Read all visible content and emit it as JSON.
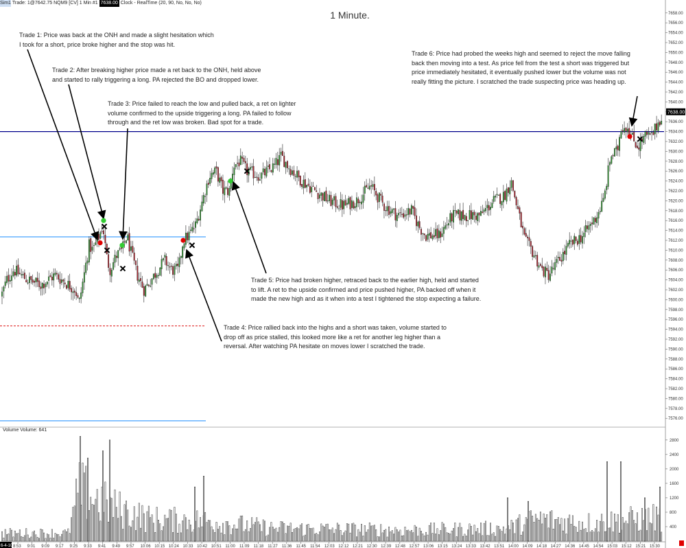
{
  "header": {
    "sim_tag": "Sim1",
    "trade_text": "Trade: 1@7642.75",
    "instrument": "NQM9 [CV]  1 Min  #1",
    "price_badge": "7638.00",
    "clock": "Clock - RealTime   (20, 90, No, No, No)"
  },
  "title": "1 Minute.",
  "annotations": [
    "Trade 1:  Price was back at the ONH and made a slight hesitation which\nI took for a short, price broke higher and the stop was hit.",
    "Trade 2:  After breaking higher price made a ret back to the ONH, held above\nand started to rally triggering a long.  PA rejected the BO and dropped lower.",
    "Trade 3:  Price failed to reach the low and pulled back, a ret on lighter\nvolume confirmed to the upside triggering a long.  PA failed to follow\nthrough and the ret low was broken.  Bad spot for a trade.",
    "Trade 4:  Price rallied back into the highs and a short was taken, volume started to\ndrop off as price stalled, this looked more like a ret for another leg higher than a\nreversal.  After watching PA hesitate on moves lower I scratched the trade.",
    "Trade 5:  Price had broken higher, retraced back to the earlier high, held and started\nto lift.  A ret to the upside confirmed and price pushed higher, PA backed off when it\nmade the new high and as it when into a test I tightened the stop expecting a failure.",
    "Trade 6:  Price had probed the weeks high and seemed to reject the move falling\nback then moving into a test.  As price fell from the test a short was triggered but\nprice immediately hesitated, it eventually pushed lower but the volume was not\nreally fitting the picture.  I scratched the trade suspecting price was heading up."
  ],
  "volume_label": "Volume  Volume: 641",
  "chart_data": {
    "type": "candlestick",
    "title": "1 Minute.",
    "x_start_label": "6-4-10",
    "x_ticks": [
      "8:53",
      "9:01",
      "9:09",
      "9:17",
      "9:25",
      "9:33",
      "9:41",
      "9:49",
      "9:57",
      "10:06",
      "10:15",
      "10:24",
      "10:33",
      "10:42",
      "10:51",
      "11:00",
      "11:09",
      "11:18",
      "11:27",
      "11:36",
      "11:45",
      "11:54",
      "12:03",
      "12:12",
      "12:21",
      "12:30",
      "12:39",
      "12:48",
      "12:57",
      "13:06",
      "13:15",
      "13:24",
      "13:33",
      "13:42",
      "13:51",
      "14:00",
      "14:09",
      "14:18",
      "14:27",
      "14:36",
      "14:45",
      "14:54",
      "15:03",
      "15:12",
      "15:21",
      "15:30"
    ],
    "y_ticks": [
      7576,
      7578,
      7580,
      7582,
      7584,
      7586,
      7588,
      7590,
      7592,
      7594,
      7596,
      7598,
      7600,
      7602,
      7604,
      7606,
      7608,
      7610,
      7612,
      7614,
      7616,
      7618,
      7620,
      7622,
      7624,
      7626,
      7628,
      7630,
      7632,
      7634,
      7636,
      7638,
      7640,
      7642,
      7644,
      7646,
      7648,
      7650,
      7652,
      7654,
      7656,
      7658
    ],
    "ylim": [
      7574.5,
      7659.5
    ],
    "last_price": "7638.00",
    "price_path": [
      [
        0,
        7600
      ],
      [
        10,
        7604
      ],
      [
        20,
        7606
      ],
      [
        40,
        7604
      ],
      [
        60,
        7603
      ],
      [
        80,
        7605
      ],
      [
        100,
        7603
      ],
      [
        110,
        7602
      ],
      [
        115,
        7599
      ],
      [
        120,
        7603
      ],
      [
        125,
        7607
      ],
      [
        130,
        7611
      ],
      [
        135,
        7610
      ],
      [
        145,
        7613
      ],
      [
        150,
        7615
      ],
      [
        155,
        7609
      ],
      [
        160,
        7606
      ],
      [
        170,
        7609
      ],
      [
        178,
        7610
      ],
      [
        185,
        7613
      ],
      [
        190,
        7610
      ],
      [
        200,
        7605
      ],
      [
        210,
        7602
      ],
      [
        220,
        7604
      ],
      [
        230,
        7606
      ],
      [
        240,
        7608
      ],
      [
        250,
        7606
      ],
      [
        260,
        7606
      ],
      [
        267,
        7612
      ],
      [
        275,
        7613
      ],
      [
        285,
        7615
      ],
      [
        295,
        7620
      ],
      [
        305,
        7625
      ],
      [
        315,
        7626
      ],
      [
        325,
        7622
      ],
      [
        335,
        7622
      ],
      [
        340,
        7627
      ],
      [
        350,
        7628
      ],
      [
        360,
        7626
      ],
      [
        380,
        7625
      ],
      [
        400,
        7627
      ],
      [
        410,
        7629
      ],
      [
        420,
        7627
      ],
      [
        440,
        7624
      ],
      [
        460,
        7622
      ],
      [
        480,
        7620
      ],
      [
        500,
        7619
      ],
      [
        520,
        7620
      ],
      [
        540,
        7623
      ],
      [
        560,
        7619
      ],
      [
        580,
        7617
      ],
      [
        600,
        7618
      ],
      [
        610,
        7615
      ],
      [
        620,
        7613
      ],
      [
        640,
        7613
      ],
      [
        660,
        7617
      ],
      [
        680,
        7617
      ],
      [
        700,
        7617
      ],
      [
        720,
        7620
      ],
      [
        735,
        7621
      ],
      [
        745,
        7624
      ],
      [
        755,
        7618
      ],
      [
        765,
        7612
      ],
      [
        775,
        7610
      ],
      [
        790,
        7606
      ],
      [
        800,
        7605
      ],
      [
        810,
        7607
      ],
      [
        830,
        7611
      ],
      [
        850,
        7613
      ],
      [
        870,
        7617
      ],
      [
        880,
        7620
      ],
      [
        890,
        7629
      ],
      [
        900,
        7630
      ],
      [
        905,
        7635
      ],
      [
        915,
        7635
      ],
      [
        920,
        7633
      ],
      [
        930,
        7631
      ],
      [
        940,
        7633
      ],
      [
        950,
        7633
      ],
      [
        960,
        7636
      ],
      [
        968,
        7638
      ]
    ],
    "volume": {
      "ylim": [
        0,
        3100
      ],
      "y_ticks": [
        400,
        800,
        1200,
        1600,
        2000,
        2400,
        2800
      ],
      "last_value": 641,
      "profile": [
        [
          0,
          220
        ],
        [
          100,
          220
        ],
        [
          115,
          1400
        ],
        [
          160,
          950
        ],
        [
          220,
          600
        ],
        [
          300,
          550
        ],
        [
          400,
          350
        ],
        [
          600,
          300
        ],
        [
          740,
          350
        ],
        [
          780,
          600
        ],
        [
          860,
          500
        ],
        [
          960,
          650
        ]
      ],
      "spikes": [
        [
          117,
          2900
        ],
        [
          128,
          2300
        ],
        [
          150,
          2500
        ],
        [
          160,
          2800
        ],
        [
          284,
          1500
        ],
        [
          297,
          1800
        ],
        [
          740,
          1200
        ],
        [
          770,
          1100
        ],
        [
          885,
          2200
        ],
        [
          905,
          2200
        ],
        [
          940,
          1200
        ],
        [
          962,
          1500
        ]
      ]
    },
    "levels": [
      {
        "price": 7634,
        "color": "#00008b",
        "style": "solid",
        "x_from": 0
      },
      {
        "price": 7612.7,
        "color": "#3399ff",
        "style": "solid",
        "x_from": 0,
        "x_to": 300
      },
      {
        "price": 7594.7,
        "color": "#e03030",
        "style": "dashed",
        "x_from": 0,
        "x_to": 300
      },
      {
        "price": 7575.5,
        "color": "#3399ff",
        "style": "solid",
        "x_from": 0,
        "x_to": 300
      }
    ],
    "markers": [
      {
        "type": "short",
        "color": "#e00000",
        "x": 146,
        "price": 7611.5
      },
      {
        "type": "long",
        "color": "#33cc33",
        "x": 151,
        "price": 7616
      },
      {
        "type": "exit",
        "x": 152,
        "price": 7614.8
      },
      {
        "type": "exit",
        "x": 156,
        "price": 7610
      },
      {
        "type": "long",
        "color": "#33cc33",
        "x": 178,
        "price": 7611
      },
      {
        "type": "exit",
        "x": 179,
        "price": 7606.3
      },
      {
        "type": "short",
        "color": "#e00000",
        "x": 267,
        "price": 7612
      },
      {
        "type": "exit",
        "x": 280,
        "price": 7611
      },
      {
        "type": "long",
        "color": "#33cc33",
        "x": 336,
        "price": 7624
      },
      {
        "type": "exit",
        "x": 360,
        "price": 7626
      },
      {
        "type": "short",
        "color": "#e00000",
        "x": 918,
        "price": 7633
      },
      {
        "type": "exit",
        "x": 933,
        "price": 7632.5
      }
    ],
    "arrows": [
      {
        "from": [
          40,
          72
        ],
        "to": [
          142,
          349
        ]
      },
      {
        "from": [
          100,
          123
        ],
        "to": [
          151,
          318
        ]
      },
      {
        "from": [
          186,
          187
        ],
        "to": [
          179,
          348
        ]
      },
      {
        "from": [
          323,
          497
        ],
        "to": [
          272,
          364
        ]
      },
      {
        "from": [
          388,
          398
        ],
        "to": [
          340,
          265
        ]
      },
      {
        "from": [
          929,
          140
        ],
        "to": [
          921,
          183
        ]
      }
    ]
  }
}
